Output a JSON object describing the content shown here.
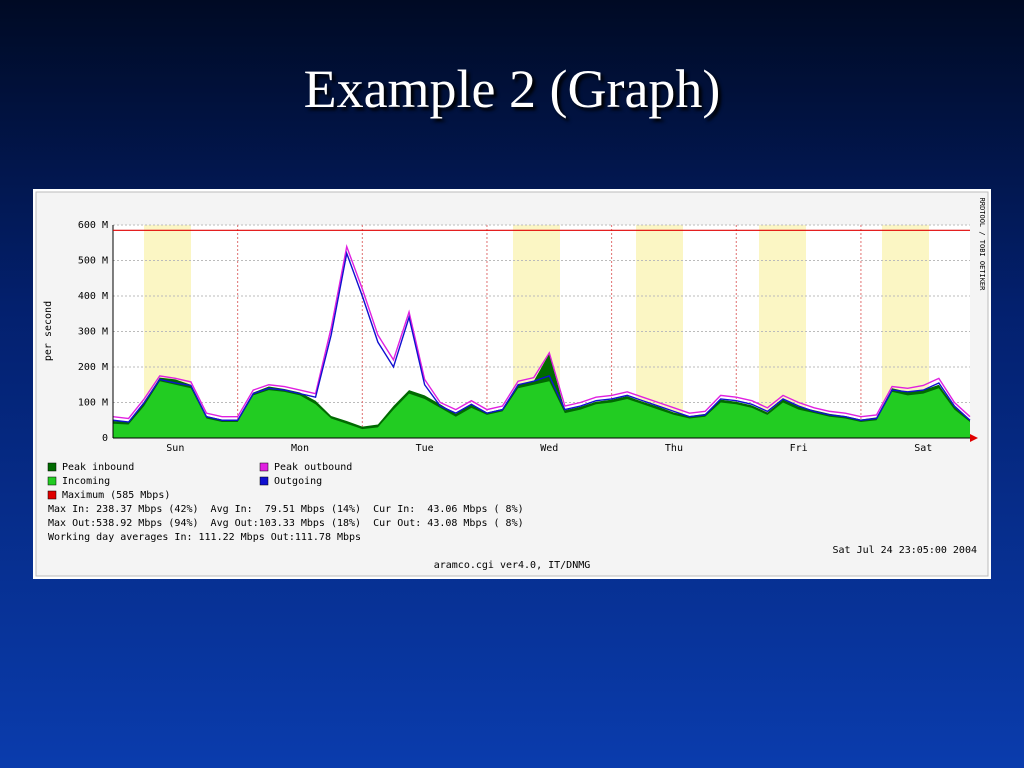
{
  "slide": {
    "title": "Example 2 (Graph)"
  },
  "chart_data": {
    "type": "line",
    "ylabel": "per second",
    "watermark": "RRDTOOL / TOBI OETIKER",
    "categories": [
      null,
      null,
      null,
      null,
      "Sun",
      null,
      null,
      null,
      null,
      null,
      null,
      null,
      "Mon",
      null,
      null,
      null,
      null,
      null,
      null,
      null,
      "Tue",
      null,
      null,
      null,
      null,
      null,
      null,
      null,
      "Wed",
      null,
      null,
      null,
      null,
      null,
      null,
      null,
      "Thu",
      null,
      null,
      null,
      null,
      null,
      null,
      null,
      "Fri",
      null,
      null,
      null,
      null,
      null,
      null,
      null,
      "Sat",
      null,
      null,
      null
    ],
    "ylim": [
      0,
      600
    ],
    "yticks": [
      0,
      {
        "value": 100,
        "label": "100 M"
      },
      {
        "value": 200,
        "label": "200 M"
      },
      {
        "value": 300,
        "label": "300 M"
      },
      {
        "value": 400,
        "label": "400 M"
      },
      {
        "value": 500,
        "label": "500 M"
      },
      {
        "value": 600,
        "label": "600 M"
      }
    ],
    "grid": true,
    "series": [
      {
        "name": "Peak inbound",
        "color": "#006a00",
        "fill": true,
        "values": [
          48,
          45,
          100,
          170,
          165,
          150,
          62,
          52,
          52,
          128,
          145,
          138,
          128,
          105,
          62,
          48,
          32,
          38,
          90,
          135,
          120,
          95,
          68,
          95,
          72,
          82,
          150,
          160,
          238,
          78,
          88,
          102,
          108,
          118,
          102,
          88,
          72,
          62,
          68,
          108,
          102,
          92,
          72,
          108,
          88,
          78,
          68,
          62,
          52,
          58,
          140,
          130,
          135,
          150,
          88,
          52
        ]
      },
      {
        "name": "Peak outbound",
        "color": "#e020e0",
        "fill": false,
        "values": [
          60,
          55,
          110,
          175,
          168,
          158,
          70,
          60,
          60,
          135,
          150,
          145,
          135,
          125,
          310,
          539,
          420,
          290,
          220,
          355,
          165,
          100,
          80,
          105,
          80,
          90,
          160,
          170,
          240,
          90,
          100,
          115,
          120,
          130,
          115,
          100,
          85,
          70,
          75,
          120,
          115,
          105,
          85,
          120,
          100,
          85,
          75,
          70,
          60,
          65,
          145,
          140,
          148,
          168,
          100,
          60
        ]
      },
      {
        "name": "Incoming",
        "color": "#22cc22",
        "fill": true,
        "values": [
          40,
          38,
          90,
          160,
          150,
          140,
          55,
          45,
          45,
          120,
          135,
          130,
          120,
          95,
          55,
          40,
          25,
          30,
          80,
          125,
          110,
          85,
          60,
          85,
          65,
          75,
          140,
          150,
          160,
          70,
          80,
          95,
          100,
          110,
          95,
          80,
          65,
          55,
          60,
          100,
          95,
          85,
          65,
          100,
          80,
          70,
          60,
          55,
          45,
          50,
          130,
          120,
          125,
          140,
          80,
          45
        ]
      },
      {
        "name": "Outgoing",
        "color": "#1010d0",
        "fill": false,
        "values": [
          50,
          45,
          100,
          165,
          155,
          148,
          60,
          50,
          50,
          125,
          140,
          135,
          125,
          115,
          290,
          520,
          400,
          270,
          200,
          340,
          150,
          90,
          70,
          95,
          70,
          80,
          150,
          160,
          175,
          80,
          90,
          105,
          110,
          120,
          105,
          90,
          75,
          60,
          65,
          110,
          105,
          95,
          75,
          110,
          90,
          75,
          65,
          60,
          50,
          55,
          135,
          130,
          135,
          155,
          90,
          50
        ]
      }
    ],
    "maximum": {
      "label": "Maximum (585 Mbps)",
      "value": 585,
      "color": "#e00000"
    },
    "notes": [
      "Max In: 238.37 Mbps (42%)  Avg In:  79.51 Mbps (14%)  Cur In:  43.06 Mbps ( 8%)",
      "Max Out:538.92 Mbps (94%)  Avg Out:103.33 Mbps (18%)  Cur Out: 43.08 Mbps ( 8%)",
      "Working day averages In: 111.22 Mbps Out:111.78 Mbps"
    ],
    "timestamp": "Sat Jul 24 23:05:00 2004",
    "footer": "aramco.cgi ver4.0, IT/DNMG"
  }
}
